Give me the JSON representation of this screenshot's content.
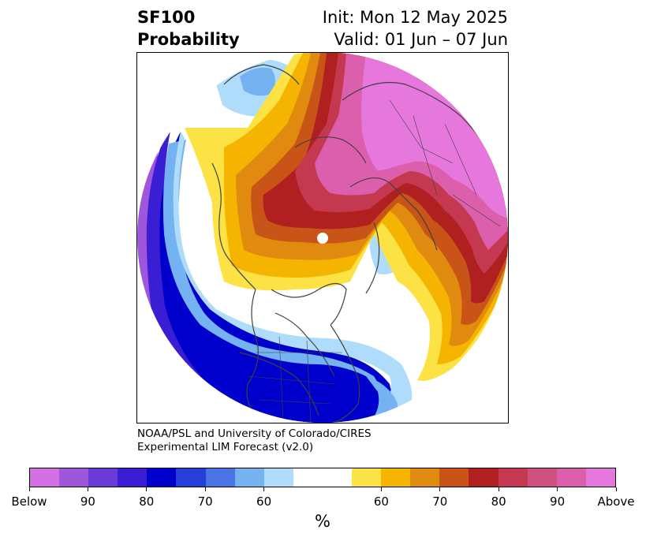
{
  "header": {
    "title_line1": "SF100",
    "title_line2": "Probability",
    "init": "Init: Mon 12 May 2025",
    "valid": "Valid: 01 Jun – 07 Jun"
  },
  "credit": {
    "line1": "NOAA/PSL and University of Colorado/CIRES",
    "line2": "Experimental LIM Forecast (v2.0)"
  },
  "colorbar": {
    "unit": "%",
    "colors": [
      "#d56fe6",
      "#9f55dc",
      "#6a3bd6",
      "#3a1ed4",
      "#0000cc",
      "#2440d8",
      "#4a74e4",
      "#74b2f2",
      "#aedcfa",
      "#ffffff",
      "#ffffff",
      "#fde245",
      "#f4b400",
      "#e08a10",
      "#c85418",
      "#b02020",
      "#c43850",
      "#d0507f",
      "#dc5fae",
      "#e677dc"
    ],
    "ticks": [
      "Below",
      "90",
      "80",
      "70",
      "60",
      "60",
      "70",
      "80",
      "90",
      "Above"
    ]
  },
  "map": {
    "projection": "north-polar-stereographic",
    "palette": {
      "below_90": "#9f55dc",
      "below_80": "#3a1ed4",
      "below_70": "#0000cc",
      "below_60": "#74b2f2",
      "below_50": "#aedcfa",
      "above_50": "#fde245",
      "above_60": "#f4b400",
      "above_70": "#e08a10",
      "above_80": "#c85418",
      "above_85": "#b02020",
      "above_90": "#c43850",
      "above_95": "#dc5fae",
      "above_max": "#e677dc",
      "coastline": "#404040"
    }
  }
}
